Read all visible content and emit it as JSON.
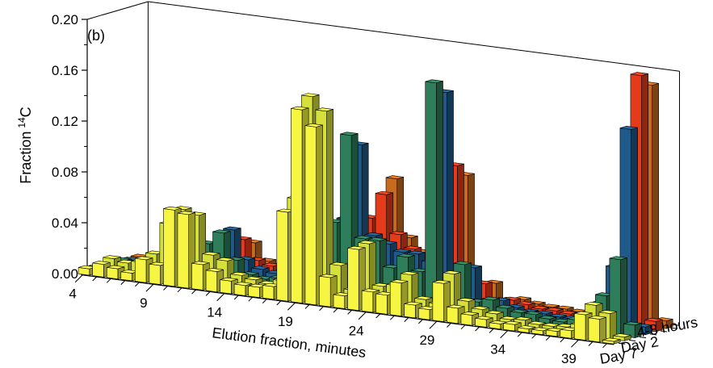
{
  "chart_data": {
    "type": "bar",
    "subtype": "3d-bar",
    "panel_label": "(b)",
    "title": "",
    "xlabel": "Elution fraction, minutes",
    "ylabel": "Fraction",
    "ylabel_sup": "14",
    "ylabel_tail": "C",
    "ylim": [
      0,
      0.2
    ],
    "yticks": [
      "0.00",
      "0.04",
      "0.08",
      "0.12",
      "0.16",
      "0.20"
    ],
    "x_tick_labels": [
      "4",
      "9",
      "14",
      "19",
      "24",
      "29",
      "34",
      "39"
    ],
    "x_tick_positions": [
      4,
      9,
      14,
      19,
      24,
      29,
      34,
      39
    ],
    "x": [
      4,
      5,
      6,
      7,
      8,
      9,
      10,
      11,
      12,
      13,
      14,
      15,
      16,
      17,
      18,
      19,
      20,
      21,
      22,
      23,
      24,
      25,
      26,
      27,
      28,
      29,
      30,
      31,
      32,
      33,
      34,
      35,
      36,
      37,
      38,
      39,
      40,
      41
    ],
    "grid": false,
    "series": [
      {
        "name": "Day 7",
        "color": "#f5f542",
        "values": [
          0.005,
          0.01,
          0.008,
          0.006,
          0.018,
          0.015,
          0.06,
          0.058,
          0.02,
          0.016,
          0.01,
          0.008,
          0.008,
          0.01,
          0.07,
          0.152,
          0.14,
          0.023,
          0.01,
          0.048,
          0.016,
          0.015,
          0.026,
          0.01,
          0.008,
          0.03,
          0.012,
          0.008,
          0.006,
          0.004,
          0.005,
          0.003,
          0.003,
          0.004,
          0.006,
          0.02,
          0.018,
          0.002
        ]
      },
      {
        "name": "Day 2",
        "color": "#d6e03a",
        "values": [
          0.004,
          0.012,
          0.01,
          0.012,
          0.02,
          0.045,
          0.058,
          0.055,
          0.025,
          0.022,
          0.012,
          0.01,
          0.008,
          0.012,
          0.078,
          0.16,
          0.15,
          0.03,
          0.012,
          0.05,
          0.018,
          0.02,
          0.03,
          0.012,
          0.01,
          0.035,
          0.015,
          0.01,
          0.008,
          0.005,
          0.006,
          0.004,
          0.004,
          0.005,
          0.008,
          0.025,
          0.02,
          0.003
        ]
      },
      {
        "name": "",
        "color": "#2e7d5b",
        "values": [
          0.003,
          0.008,
          0.006,
          0.008,
          0.01,
          0.02,
          0.025,
          0.03,
          0.04,
          0.02,
          0.01,
          0.008,
          0.01,
          0.015,
          0.03,
          0.05,
          0.06,
          0.13,
          0.05,
          0.05,
          0.03,
          0.04,
          0.03,
          0.18,
          0.02,
          0.04,
          0.012,
          0.015,
          0.01,
          0.008,
          0.008,
          0.006,
          0.005,
          0.008,
          0.015,
          0.03,
          0.06,
          0.01
        ]
      },
      {
        "name": "",
        "color": "#1f5a8a",
        "values": [
          0.002,
          0.006,
          0.005,
          0.006,
          0.008,
          0.015,
          0.02,
          0.022,
          0.04,
          0.018,
          0.012,
          0.01,
          0.012,
          0.02,
          0.025,
          0.045,
          0.06,
          0.12,
          0.05,
          0.045,
          0.04,
          0.04,
          0.035,
          0.17,
          0.015,
          0.035,
          0.01,
          0.012,
          0.008,
          0.006,
          0.006,
          0.005,
          0.005,
          0.01,
          0.02,
          0.05,
          0.16,
          0.006
        ]
      },
      {
        "name": "",
        "color": "#e53b1a",
        "values": [
          0.002,
          0.004,
          0.004,
          0.005,
          0.006,
          0.01,
          0.012,
          0.015,
          0.03,
          0.015,
          0.012,
          0.01,
          0.015,
          0.02,
          0.02,
          0.03,
          0.05,
          0.06,
          0.08,
          0.05,
          0.04,
          0.03,
          0.02,
          0.11,
          0.015,
          0.02,
          0.008,
          0.01,
          0.008,
          0.006,
          0.006,
          0.005,
          0.006,
          0.01,
          0.015,
          0.04,
          0.2,
          0.008
        ]
      },
      {
        "name": "4-8 hours",
        "color": "#c76b1e",
        "values": [
          0.002,
          0.003,
          0.003,
          0.004,
          0.005,
          0.008,
          0.01,
          0.012,
          0.025,
          0.012,
          0.01,
          0.008,
          0.012,
          0.018,
          0.018,
          0.025,
          0.045,
          0.05,
          0.09,
          0.045,
          0.035,
          0.025,
          0.018,
          0.1,
          0.012,
          0.018,
          0.006,
          0.008,
          0.006,
          0.005,
          0.005,
          0.004,
          0.005,
          0.008,
          0.012,
          0.035,
          0.19,
          0.006
        ]
      }
    ],
    "depth_labels": [
      "4-8 hours",
      "Day 2",
      "Day 7"
    ]
  }
}
